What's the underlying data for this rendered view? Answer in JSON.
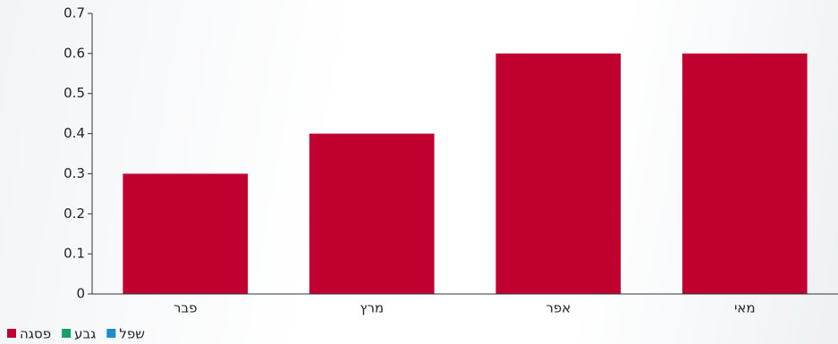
{
  "chart_data": {
    "type": "bar",
    "categories": [
      "פבר",
      "מרץ",
      "אפר",
      "מאי"
    ],
    "series": [
      {
        "name": "פסגה",
        "color": "#c0002f",
        "values": [
          0.3,
          0.4,
          0.6,
          0.6
        ]
      },
      {
        "name": "גבע",
        "color": "#17a06b",
        "values": [
          null,
          null,
          null,
          null
        ]
      },
      {
        "name": "שפל",
        "color": "#1b8dcc",
        "values": [
          null,
          null,
          null,
          null
        ]
      }
    ],
    "ylim": [
      0,
      0.7
    ],
    "yticks": [
      0,
      0.1,
      0.2,
      0.3,
      0.4,
      0.5,
      0.6,
      0.7
    ]
  }
}
